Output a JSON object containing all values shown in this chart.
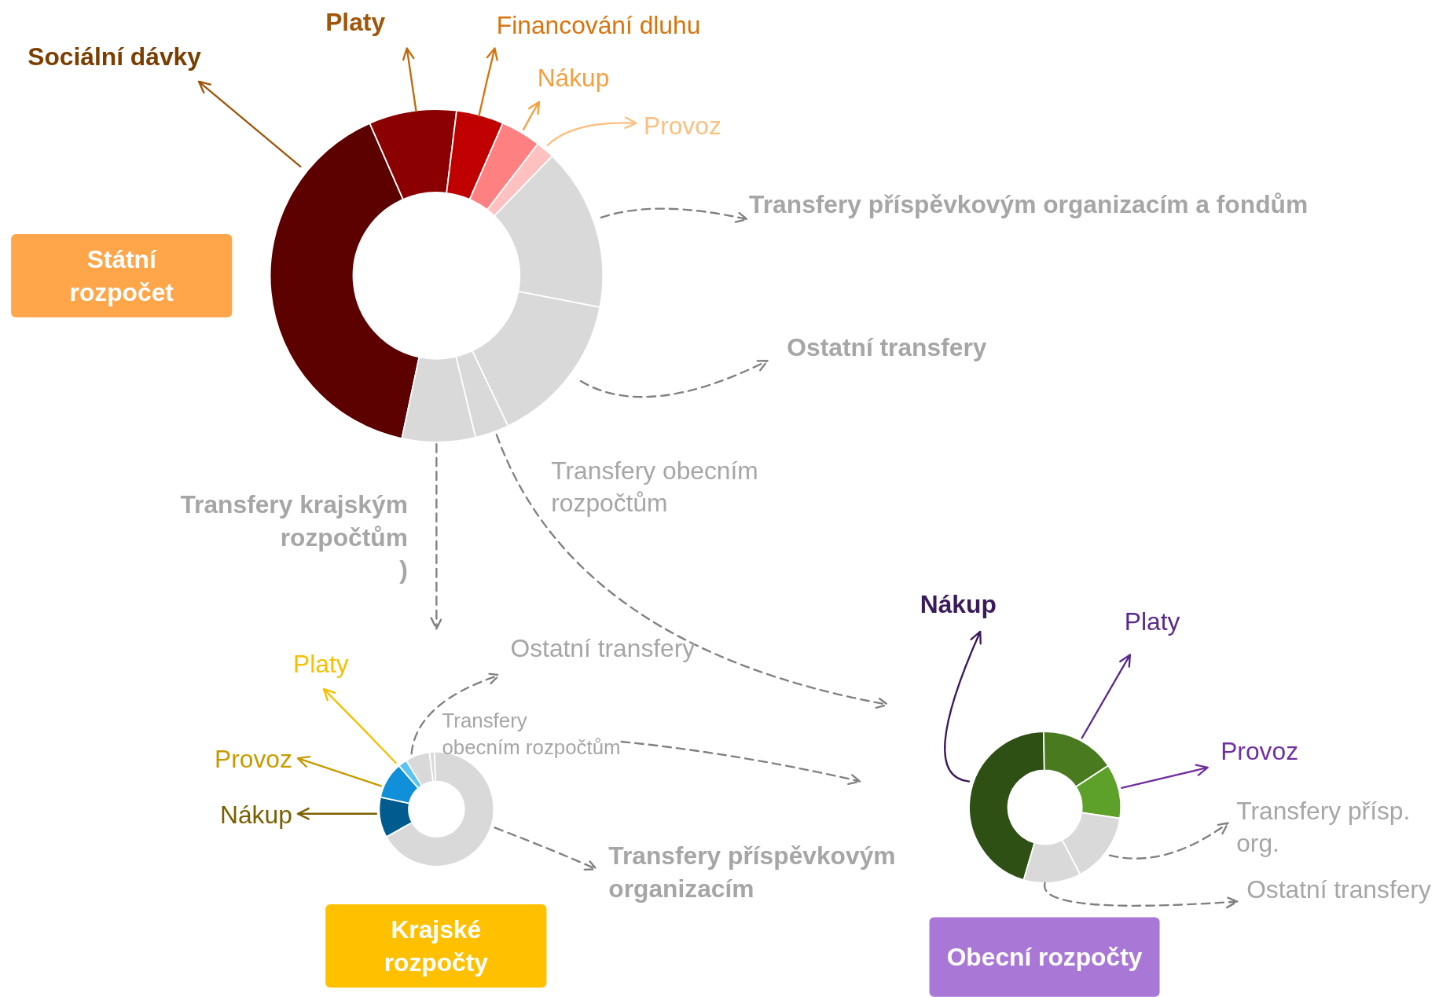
{
  "chart_data": [
    {
      "type": "donut",
      "title": "Státní rozpočet",
      "categories": [
        "Sociální dávky",
        "Platy",
        "Financování dluhu",
        "Nákup",
        "Provoz",
        "Transfery příspěvkovým organizacím a fondům",
        "Ostatní transfery",
        "Transfery obecním rozpočtům",
        "Transfery krajským rozpočtům )"
      ],
      "values": [
        40.1,
        8.5,
        4.6,
        3.9,
        1.8,
        15.8,
        14.9,
        3.3,
        7.1
      ],
      "colors": [
        "#5c0000",
        "#8b0000",
        "#c00000",
        "#ff8080",
        "#ffc0c0",
        "#d9d9d9",
        "#d9d9d9",
        "#d9d9d9",
        "#d9d9d9"
      ]
    },
    {
      "type": "donut",
      "title": "Krajské rozpočty",
      "categories": [
        "Nákup",
        "Provoz",
        "Platy",
        "Ostatní transfery",
        "Transfery obecním rozpočtům",
        "Transfery příspěvkovým organizacím"
      ],
      "values": [
        11.4,
        10.3,
        2.5,
        6.9,
        1.4,
        67.5
      ],
      "colors": [
        "#005c8f",
        "#1090d8",
        "#5bc4f0",
        "#d9d9d9",
        "#d9d9d9",
        "#d9d9d9"
      ]
    },
    {
      "type": "donut",
      "title": "Obecní rozpočty",
      "categories": [
        "Nákup",
        "Platy",
        "Provoz",
        "Transfery přísp. org.",
        "Ostatní transfery"
      ],
      "values": [
        45.2,
        16,
        11.6,
        15,
        12.2
      ],
      "colors": [
        "#2e5014",
        "#4a7a20",
        "#5da02a",
        "#d9d9d9",
        "#d9d9d9"
      ]
    }
  ]
}
